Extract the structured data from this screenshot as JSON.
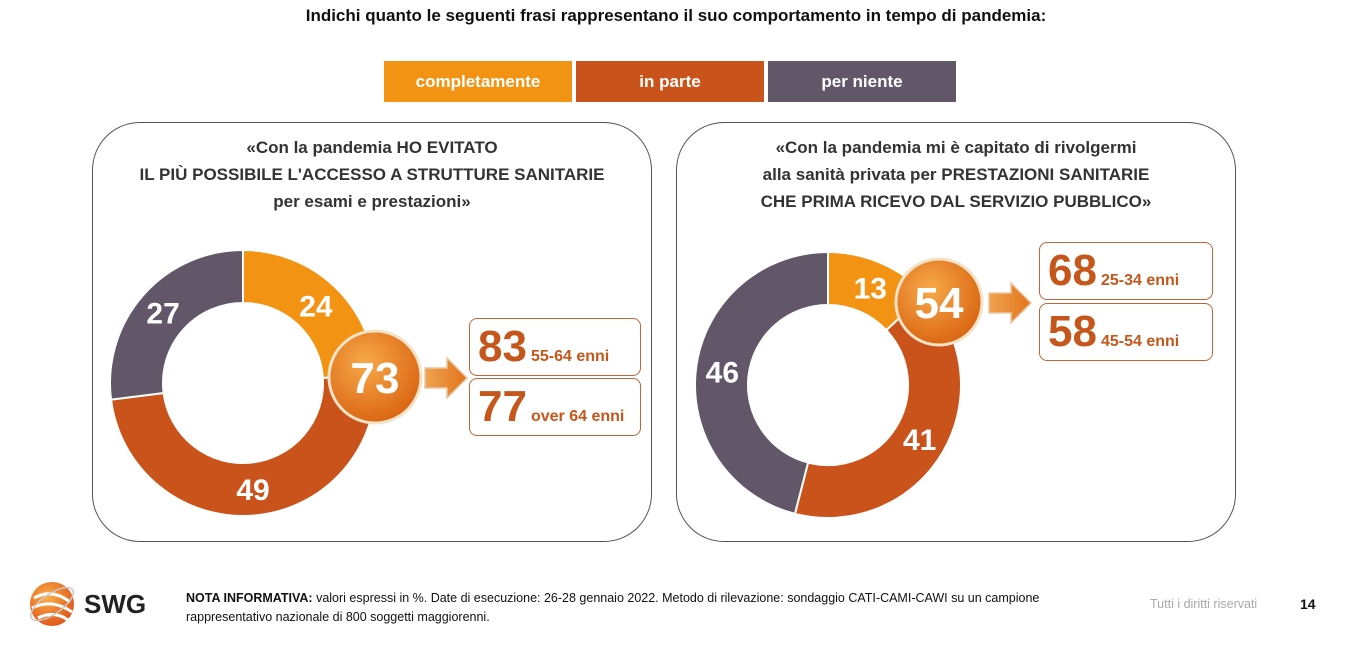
{
  "title": "Indichi quanto le seguenti frasi rappresentano il suo comportamento in tempo di pandemia:",
  "legend": [
    {
      "label": "completamente",
      "color": "#f39314"
    },
    {
      "label": "in parte",
      "color": "#c9531b"
    },
    {
      "label": "per niente",
      "color": "#625768"
    }
  ],
  "chart_data": [
    {
      "type": "pie",
      "title_lines": [
        "«Con la pandemia HO EVITATO",
        "IL PIÙ POSSIBILE L'ACCESSO A STRUTTURE SANITARIE",
        "per esami e prestazioni»"
      ],
      "categories": [
        "completamente",
        "in parte",
        "per niente"
      ],
      "values": [
        24,
        49,
        27
      ],
      "labels": [
        "24",
        "49",
        "27"
      ],
      "highlight": {
        "value": "73",
        "label": ""
      },
      "breakdown": [
        {
          "value": "83",
          "label": "55-64 enni"
        },
        {
          "value": "77",
          "label": "over 64 enni"
        }
      ]
    },
    {
      "type": "pie",
      "title_lines": [
        "«Con la pandemia mi è capitato di rivolgermi",
        "alla sanità privata per PRESTAZIONI SANITARIE",
        "CHE PRIMA RICEVO DAL SERVIZIO PUBBLICO»"
      ],
      "categories": [
        "completamente",
        "in parte",
        "per niente"
      ],
      "values": [
        13,
        41,
        46
      ],
      "labels": [
        "13",
        "41",
        "46"
      ],
      "highlight": {
        "value": "54",
        "label": ""
      },
      "breakdown": [
        {
          "value": "68",
          "label": "25-34 enni"
        },
        {
          "value": "58",
          "label": "45-54 enni"
        }
      ]
    }
  ],
  "footer": {
    "note_label": "NOTA INFORMATIVA:",
    "note_text": " valori espressi in %. Date di esecuzione: 26-28 gennaio 2022. Metodo di rilevazione: sondaggio CATI-CAMI-CAWI su un campione rappresentativo nazionale di 800 soggetti maggiorenni.",
    "logo_text": "SWG",
    "rights": "Tutti i diritti riservati",
    "page_number": "14"
  }
}
